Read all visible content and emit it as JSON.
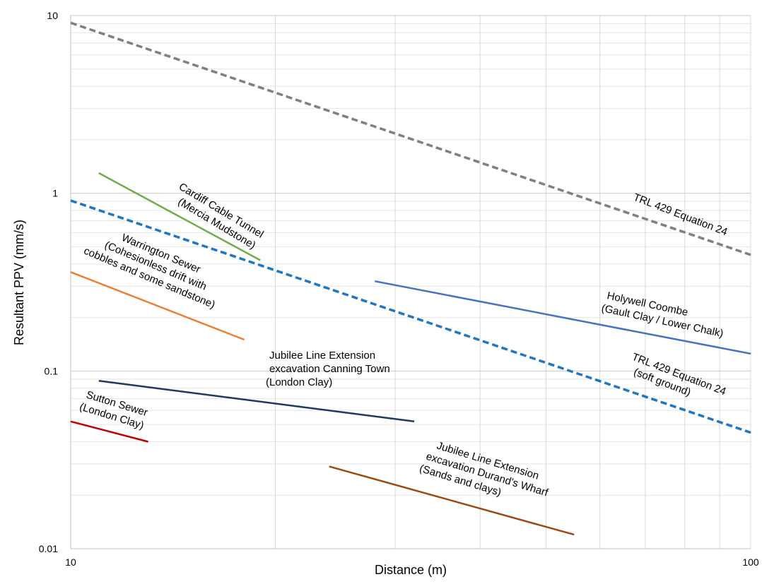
{
  "chart_data": {
    "type": "line",
    "xscale": "log",
    "yscale": "log",
    "xlim": [
      10,
      100
    ],
    "ylim": [
      0.01,
      10
    ],
    "xlabel": "Distance (m)",
    "ylabel": "Resultant PPV (mm/s)",
    "grid": true,
    "x_ticks": [
      {
        "value": 10,
        "label": "10"
      },
      {
        "value": 100,
        "label": "100"
      }
    ],
    "y_ticks": [
      {
        "value": 0.01,
        "label": "0.01"
      },
      {
        "value": 0.1,
        "label": "0.1"
      },
      {
        "value": 1,
        "label": "1"
      },
      {
        "value": 10,
        "label": "10"
      }
    ],
    "series": [
      {
        "key": "trl-equation-24",
        "label_lines": [
          "TRL 429 Equation 24"
        ],
        "color": "#808080",
        "dash": true,
        "x": [
          10,
          100
        ],
        "y": [
          9.1,
          0.45
        ]
      },
      {
        "key": "trl-equation-24-soft-ground",
        "label_lines": [
          "TRL 429 Equation 24",
          "(soft ground)"
        ],
        "color": "#1f77c4",
        "dash": true,
        "x": [
          10,
          100
        ],
        "y": [
          0.91,
          0.045
        ]
      },
      {
        "key": "cardiff-cable-tunnel",
        "label_lines": [
          "Cardiff Cable Tunnel",
          "(Mercia Mudstone)"
        ],
        "color": "#70ad47",
        "dash": false,
        "x": [
          11,
          19
        ],
        "y": [
          1.3,
          0.42
        ]
      },
      {
        "key": "warrington-sewer",
        "label_lines": [
          "Warrington Sewer",
          "(Cohesionless drift with",
          "cobbles and some sandstone)"
        ],
        "color": "#ed7d31",
        "dash": false,
        "x": [
          10,
          18
        ],
        "y": [
          0.36,
          0.15
        ]
      },
      {
        "key": "holywell-coombe",
        "label_lines": [
          "Holywell Coombe",
          "(Gault Clay / Lower Chalk)"
        ],
        "color": "#4472c4",
        "dash": false,
        "x": [
          28,
          100
        ],
        "y": [
          0.32,
          0.125
        ]
      },
      {
        "key": "jle-canning-town",
        "label_lines": [
          "Jubilee Line Extension",
          "excavation Canning Town",
          "(London Clay)"
        ],
        "color": "#203864",
        "dash": false,
        "x": [
          11,
          32
        ],
        "y": [
          0.088,
          0.052
        ]
      },
      {
        "key": "sutton-sewer",
        "label_lines": [
          "Sutton Sewer",
          "(London Clay)"
        ],
        "color": "#c00000",
        "dash": false,
        "x": [
          10,
          13
        ],
        "y": [
          0.052,
          0.04
        ]
      },
      {
        "key": "jle-durands-wharf",
        "label_lines": [
          "Jubilee Line Extension",
          "excavation Durand's Wharf",
          "(Sands and clays)"
        ],
        "color": "#9e480e",
        "dash": false,
        "x": [
          24,
          55
        ],
        "y": [
          0.029,
          0.012
        ]
      }
    ]
  }
}
